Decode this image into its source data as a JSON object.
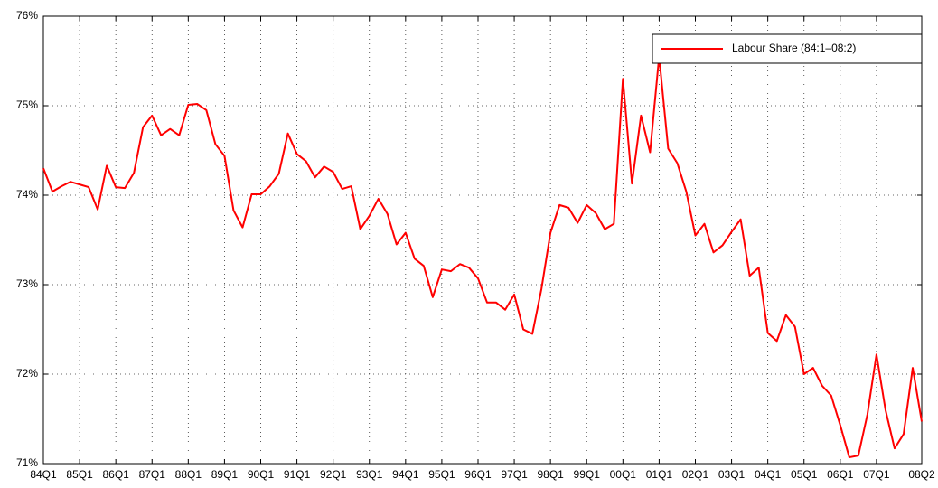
{
  "chart_data": {
    "type": "line",
    "categories": [
      "84Q1",
      null,
      null,
      null,
      "85Q1",
      null,
      null,
      null,
      "86Q1",
      null,
      null,
      null,
      "87Q1",
      null,
      null,
      null,
      "88Q1",
      null,
      null,
      null,
      "89Q1",
      null,
      null,
      null,
      "90Q1",
      null,
      null,
      null,
      "91Q1",
      null,
      null,
      null,
      "92Q1",
      null,
      null,
      null,
      "93Q1",
      null,
      null,
      null,
      "94Q1",
      null,
      null,
      null,
      "95Q1",
      null,
      null,
      null,
      "96Q1",
      null,
      null,
      null,
      "97Q1",
      null,
      null,
      null,
      "98Q1",
      null,
      null,
      null,
      "99Q1",
      null,
      null,
      null,
      "00Q1",
      null,
      null,
      null,
      "01Q1",
      null,
      null,
      null,
      "02Q1",
      null,
      null,
      null,
      "03Q1",
      null,
      null,
      null,
      "04Q1",
      null,
      null,
      null,
      "05Q1",
      null,
      null,
      null,
      "06Q1",
      null,
      null,
      null,
      "07Q1",
      null,
      null,
      null,
      null,
      "08Q2"
    ],
    "series": [
      {
        "name": "Labour Share (84:1–08:2)",
        "color": "#ff0000",
        "values": [
          74.3,
          74.04,
          74.1,
          74.15,
          74.12,
          74.09,
          73.84,
          74.33,
          74.09,
          74.08,
          74.25,
          74.76,
          74.89,
          74.67,
          74.74,
          74.67,
          75.01,
          75.02,
          74.95,
          74.57,
          74.44,
          73.83,
          73.64,
          74.01,
          74.01,
          74.1,
          74.24,
          74.69,
          74.46,
          74.38,
          74.2,
          74.32,
          74.26,
          74.07,
          74.1,
          73.62,
          73.77,
          73.96,
          73.79,
          73.45,
          73.58,
          73.29,
          73.21,
          72.86,
          73.17,
          73.15,
          73.23,
          73.19,
          73.07,
          72.8,
          72.8,
          72.72,
          72.89,
          72.5,
          72.45,
          72.95,
          73.58,
          73.89,
          73.86,
          73.69,
          73.89,
          73.8,
          73.62,
          73.68,
          75.3,
          74.13,
          74.89,
          74.48,
          75.55,
          74.52,
          74.36,
          74.04,
          73.55,
          73.68,
          73.36,
          73.44,
          73.59,
          73.73,
          73.1,
          73.19,
          72.46,
          72.37,
          72.66,
          72.53,
          72.0,
          72.07,
          71.87,
          71.76,
          71.43,
          71.07,
          71.09,
          71.55,
          72.22,
          71.6,
          71.17,
          71.33,
          72.07,
          71.47
        ]
      }
    ],
    "ylim": [
      71,
      76
    ],
    "yticks": [
      {
        "value": 71,
        "label": "71%"
      },
      {
        "value": 72,
        "label": "72%"
      },
      {
        "value": 73,
        "label": "73%"
      },
      {
        "value": 74,
        "label": "74%"
      },
      {
        "value": 75,
        "label": "75%"
      },
      {
        "value": 76,
        "label": "76%"
      }
    ],
    "grid": true,
    "legend": "upper right"
  }
}
